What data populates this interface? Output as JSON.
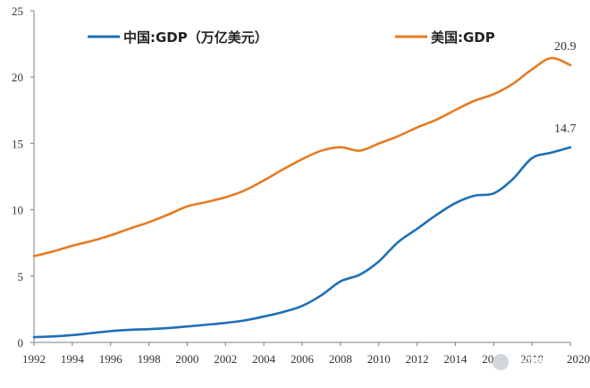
{
  "chart_data": {
    "type": "line",
    "title": "",
    "xlabel": "",
    "ylabel": "",
    "xlim": [
      1992,
      2020
    ],
    "ylim": [
      0,
      25
    ],
    "yticks": [
      "0",
      "5",
      "10",
      "15",
      "20",
      "25"
    ],
    "xticks": [
      "1992",
      "1994",
      "1996",
      "1998",
      "2000",
      "2002",
      "2004",
      "2006",
      "2008",
      "2010",
      "2012",
      "2014",
      "2016",
      "2018",
      "2020"
    ],
    "grid": false,
    "legend_position": "top",
    "x": [
      1992,
      1993,
      1994,
      1995,
      1996,
      1997,
      1998,
      1999,
      2000,
      2001,
      2002,
      2003,
      2004,
      2005,
      2006,
      2007,
      2008,
      2009,
      2010,
      2011,
      2012,
      2013,
      2014,
      2015,
      2016,
      2017,
      2018,
      2019,
      2020
    ],
    "series": [
      {
        "name": "中国:GDP（万亿美元）",
        "color": "#1f6fb7",
        "values": [
          0.4,
          0.45,
          0.55,
          0.7,
          0.85,
          0.95,
          1.0,
          1.08,
          1.2,
          1.33,
          1.47,
          1.66,
          1.95,
          2.29,
          2.75,
          3.55,
          4.6,
          5.1,
          6.1,
          7.55,
          8.56,
          9.6,
          10.5,
          11.06,
          11.23,
          12.31,
          13.89,
          14.3,
          14.7
        ]
      },
      {
        "name": "美国:GDP",
        "color": "#e57b23",
        "values": [
          6.5,
          6.86,
          7.29,
          7.64,
          8.07,
          8.58,
          9.06,
          9.63,
          10.25,
          10.58,
          10.94,
          11.46,
          12.21,
          13.04,
          13.81,
          14.45,
          14.71,
          14.45,
          14.99,
          15.54,
          16.2,
          16.78,
          17.52,
          18.22,
          18.71,
          19.49,
          20.58,
          21.43,
          20.9
        ]
      }
    ],
    "annotations": [
      {
        "series": 1,
        "x": 2020,
        "label": "20.9"
      },
      {
        "series": 0,
        "x": 2020,
        "label": "14.7"
      }
    ]
  },
  "watermark": "泽平宏观"
}
